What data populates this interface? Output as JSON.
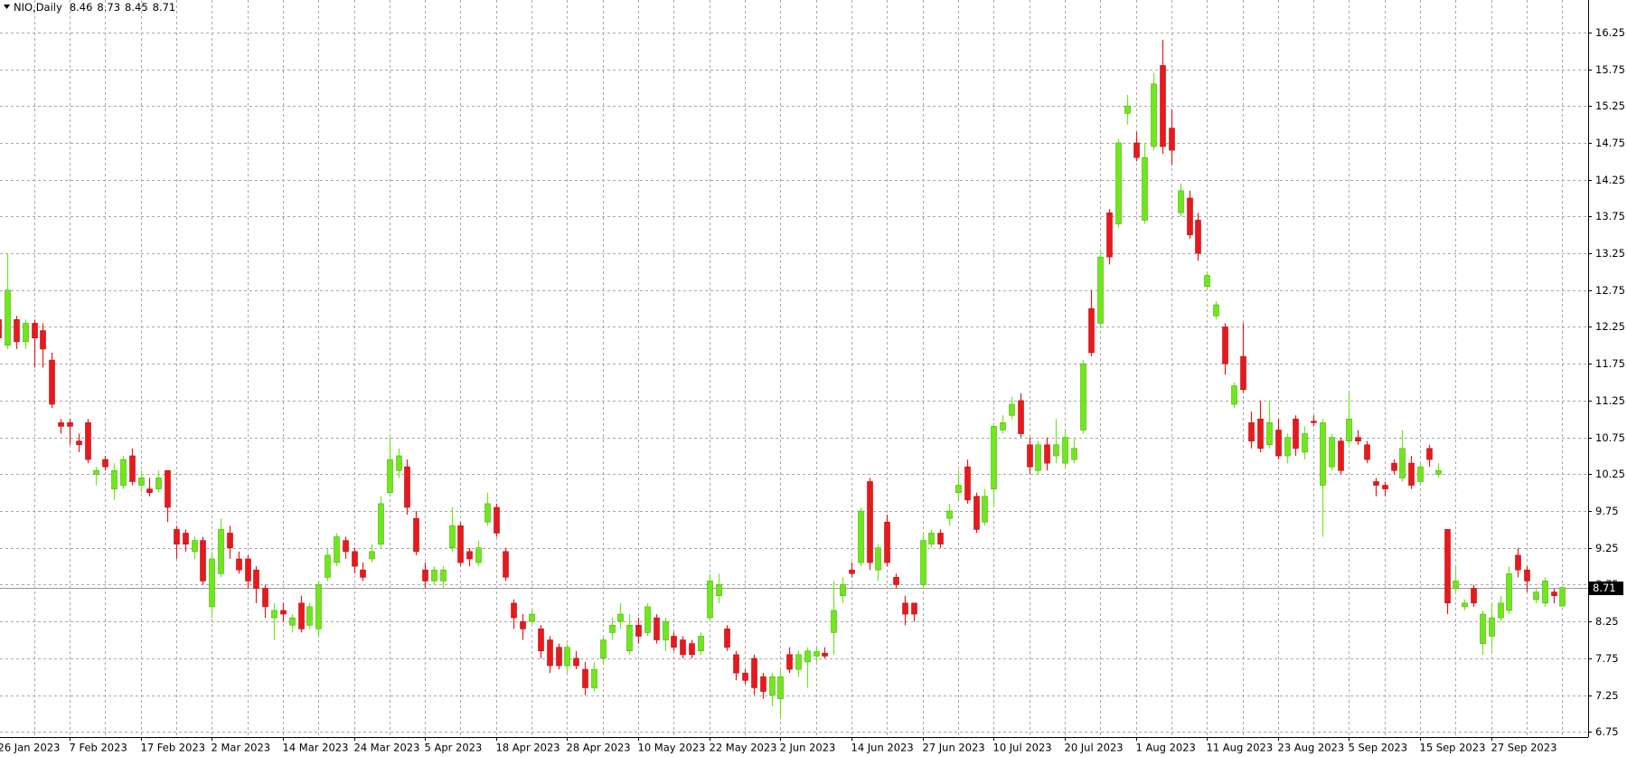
{
  "chart_data": {
    "type": "candlestick",
    "title": "NIO,Daily",
    "up_color": "#6fe81a",
    "down_color": "#e8191c",
    "grid": true,
    "ylim": [
      6.68,
      16.69
    ],
    "yticks": [
      6.75,
      7.25,
      7.75,
      8.25,
      8.75,
      9.25,
      9.75,
      10.25,
      10.75,
      11.25,
      11.75,
      12.25,
      12.75,
      13.25,
      13.75,
      14.25,
      14.75,
      15.25,
      15.75,
      16.25
    ],
    "categories": [
      "26 Jan 2023",
      null,
      null,
      null,
      null,
      null,
      null,
      null,
      "7 Feb 2023",
      null,
      null,
      null,
      null,
      null,
      null,
      null,
      "17 Feb 2023",
      null,
      null,
      null,
      null,
      null,
      null,
      null,
      "2 Mar 2023",
      null,
      null,
      null,
      null,
      null,
      null,
      null,
      "14 Mar 2023",
      null,
      null,
      null,
      null,
      null,
      null,
      null,
      "24 Mar 2023",
      null,
      null,
      null,
      null,
      null,
      null,
      null,
      "5 Apr 2023",
      null,
      null,
      null,
      null,
      null,
      null,
      null,
      "18 Apr 2023",
      null,
      null,
      null,
      null,
      null,
      null,
      null,
      "28 Apr 2023",
      null,
      null,
      null,
      null,
      null,
      null,
      null,
      "10 May 2023",
      null,
      null,
      null,
      null,
      null,
      null,
      null,
      "22 May 2023",
      null,
      null,
      null,
      null,
      null,
      null,
      null,
      "2 Jun 2023",
      null,
      null,
      null,
      null,
      null,
      null,
      null,
      "14 Jun 2023",
      null,
      null,
      null,
      null,
      null,
      null,
      null,
      "27 Jun 2023",
      null,
      null,
      null,
      null,
      null,
      null,
      null,
      "10 Jul 2023",
      null,
      null,
      null,
      null,
      null,
      null,
      null,
      "20 Jul 2023",
      null,
      null,
      null,
      null,
      null,
      null,
      null,
      "1 Aug 2023",
      null,
      null,
      null,
      null,
      null,
      null,
      null,
      "11 Aug 2023",
      null,
      null,
      null,
      null,
      null,
      null,
      null,
      "23 Aug 2023",
      null,
      null,
      null,
      null,
      null,
      null,
      null,
      "5 Sep 2023",
      null,
      null,
      null,
      null,
      null,
      null,
      null,
      "15 Sep 2023",
      null,
      null,
      null,
      null,
      null,
      null,
      null,
      "27 Sep 2023",
      null,
      null,
      null,
      null,
      null,
      null,
      null,
      null
    ],
    "candles": [
      [
        12.35,
        12.5,
        12.0,
        12.1
      ],
      [
        12.0,
        13.25,
        11.95,
        12.75
      ],
      [
        12.35,
        12.4,
        11.95,
        12.05
      ],
      [
        12.05,
        12.35,
        11.95,
        12.3
      ],
      [
        12.3,
        12.35,
        11.7,
        12.1
      ],
      [
        12.2,
        12.3,
        11.7,
        11.95
      ],
      [
        11.8,
        11.9,
        11.15,
        11.2
      ],
      [
        10.95,
        11.0,
        10.8,
        10.9
      ],
      [
        10.95,
        11.0,
        10.65,
        10.9
      ],
      [
        10.7,
        10.8,
        10.55,
        10.65
      ],
      [
        10.95,
        11.0,
        10.4,
        10.45
      ],
      [
        10.25,
        10.35,
        10.1,
        10.3
      ],
      [
        10.45,
        10.5,
        10.3,
        10.35
      ],
      [
        10.05,
        10.4,
        9.9,
        10.3
      ],
      [
        10.1,
        10.5,
        10.05,
        10.45
      ],
      [
        10.5,
        10.6,
        10.1,
        10.15
      ],
      [
        10.1,
        10.3,
        10.0,
        10.2
      ],
      [
        10.05,
        10.2,
        9.95,
        10.0
      ],
      [
        10.05,
        10.3,
        10.0,
        10.2
      ],
      [
        10.3,
        10.3,
        9.6,
        9.8
      ],
      [
        9.5,
        9.55,
        9.1,
        9.3
      ],
      [
        9.45,
        9.5,
        9.2,
        9.3
      ],
      [
        9.2,
        9.4,
        9.1,
        9.35
      ],
      [
        9.35,
        9.4,
        8.75,
        8.8
      ],
      [
        8.45,
        9.2,
        8.3,
        9.1
      ],
      [
        8.9,
        9.65,
        8.85,
        9.5
      ],
      [
        9.45,
        9.55,
        9.1,
        9.25
      ],
      [
        9.1,
        9.2,
        8.9,
        8.95
      ],
      [
        9.1,
        9.15,
        8.7,
        8.8
      ],
      [
        8.95,
        9.0,
        8.5,
        8.7
      ],
      [
        8.7,
        8.75,
        8.3,
        8.45
      ],
      [
        8.3,
        8.5,
        8.0,
        8.4
      ],
      [
        8.4,
        8.5,
        8.25,
        8.35
      ],
      [
        8.2,
        8.35,
        8.1,
        8.3
      ],
      [
        8.5,
        8.6,
        8.1,
        8.15
      ],
      [
        8.2,
        8.5,
        8.15,
        8.45
      ],
      [
        8.15,
        8.8,
        8.05,
        8.75
      ],
      [
        8.85,
        9.25,
        8.8,
        9.15
      ],
      [
        9.05,
        9.45,
        9.0,
        9.4
      ],
      [
        9.35,
        9.4,
        9.1,
        9.2
      ],
      [
        9.2,
        9.25,
        8.9,
        9.0
      ],
      [
        8.95,
        9.05,
        8.8,
        8.85
      ],
      [
        9.1,
        9.3,
        9.05,
        9.2
      ],
      [
        9.3,
        9.95,
        9.25,
        9.85
      ],
      [
        10.0,
        10.75,
        9.95,
        10.45
      ],
      [
        10.3,
        10.6,
        10.2,
        10.5
      ],
      [
        10.35,
        10.45,
        9.7,
        9.8
      ],
      [
        9.65,
        9.75,
        9.15,
        9.2
      ],
      [
        8.95,
        9.05,
        8.7,
        8.8
      ],
      [
        8.8,
        9.0,
        8.75,
        8.95
      ],
      [
        8.8,
        9.0,
        8.7,
        8.95
      ],
      [
        9.25,
        9.8,
        9.2,
        9.55
      ],
      [
        9.55,
        9.6,
        9.0,
        9.05
      ],
      [
        9.2,
        9.25,
        9.0,
        9.1
      ],
      [
        9.05,
        9.35,
        9.0,
        9.25
      ],
      [
        9.6,
        10.0,
        9.55,
        9.85
      ],
      [
        9.8,
        9.85,
        9.4,
        9.45
      ],
      [
        9.2,
        9.25,
        8.8,
        8.85
      ],
      [
        8.5,
        8.55,
        8.15,
        8.3
      ],
      [
        8.25,
        8.35,
        8.0,
        8.15
      ],
      [
        8.25,
        8.4,
        8.2,
        8.35
      ],
      [
        8.15,
        8.2,
        7.75,
        7.85
      ],
      [
        8.0,
        8.05,
        7.55,
        7.65
      ],
      [
        7.9,
        7.95,
        7.6,
        7.65
      ],
      [
        7.65,
        7.95,
        7.55,
        7.9
      ],
      [
        7.75,
        7.85,
        7.6,
        7.65
      ],
      [
        7.6,
        7.7,
        7.25,
        7.35
      ],
      [
        7.35,
        7.7,
        7.3,
        7.6
      ],
      [
        7.75,
        8.05,
        7.7,
        8.0
      ],
      [
        8.1,
        8.3,
        8.0,
        8.2
      ],
      [
        8.25,
        8.5,
        8.15,
        8.35
      ],
      [
        7.85,
        8.35,
        7.8,
        8.2
      ],
      [
        8.2,
        8.3,
        7.95,
        8.05
      ],
      [
        8.1,
        8.5,
        8.05,
        8.45
      ],
      [
        8.3,
        8.35,
        7.95,
        8.0
      ],
      [
        8.0,
        8.3,
        7.85,
        8.25
      ],
      [
        8.05,
        8.1,
        7.85,
        7.9
      ],
      [
        8.0,
        8.05,
        7.75,
        7.8
      ],
      [
        7.95,
        8.0,
        7.75,
        7.8
      ],
      [
        7.85,
        8.1,
        7.8,
        8.05
      ],
      [
        8.3,
        8.9,
        8.25,
        8.8
      ],
      [
        8.6,
        8.9,
        8.5,
        8.75
      ],
      [
        8.15,
        8.2,
        7.85,
        7.9
      ],
      [
        7.8,
        7.85,
        7.45,
        7.55
      ],
      [
        7.55,
        7.6,
        7.4,
        7.45
      ],
      [
        7.75,
        7.8,
        7.25,
        7.35
      ],
      [
        7.5,
        7.55,
        7.2,
        7.3
      ],
      [
        7.25,
        7.55,
        7.1,
        7.5
      ],
      [
        7.2,
        7.6,
        6.95,
        7.5
      ],
      [
        7.8,
        7.9,
        7.55,
        7.6
      ],
      [
        7.6,
        7.85,
        7.5,
        7.8
      ],
      [
        7.7,
        7.9,
        7.35,
        7.85
      ],
      [
        7.78,
        7.9,
        7.7,
        7.84
      ],
      [
        7.82,
        7.9,
        7.75,
        7.78
      ],
      [
        8.1,
        8.8,
        7.8,
        8.4
      ],
      [
        8.6,
        8.85,
        8.5,
        8.75
      ],
      [
        8.95,
        9.05,
        8.85,
        8.9
      ],
      [
        9.05,
        9.8,
        9.0,
        9.75
      ],
      [
        10.15,
        10.2,
        8.95,
        9.05
      ],
      [
        8.95,
        9.3,
        8.8,
        9.25
      ],
      [
        9.6,
        9.7,
        9.0,
        9.05
      ],
      [
        8.85,
        8.9,
        8.7,
        8.75
      ],
      [
        8.5,
        8.6,
        8.2,
        8.35
      ],
      [
        8.5,
        8.5,
        8.25,
        8.35
      ],
      [
        8.75,
        9.45,
        8.7,
        9.35
      ],
      [
        9.3,
        9.5,
        9.25,
        9.45
      ],
      [
        9.45,
        9.5,
        9.25,
        9.3
      ],
      [
        9.65,
        9.85,
        9.55,
        9.75
      ],
      [
        10.0,
        10.3,
        9.9,
        10.1
      ],
      [
        10.35,
        10.45,
        9.85,
        9.9
      ],
      [
        9.95,
        10.0,
        9.45,
        9.5
      ],
      [
        9.6,
        10.05,
        9.55,
        9.95
      ],
      [
        10.05,
        10.95,
        9.8,
        10.9
      ],
      [
        10.85,
        11.05,
        10.8,
        10.95
      ],
      [
        11.05,
        11.3,
        11.0,
        11.2
      ],
      [
        11.25,
        11.35,
        10.75,
        10.8
      ],
      [
        10.65,
        10.75,
        10.25,
        10.35
      ],
      [
        10.3,
        10.7,
        10.25,
        10.65
      ],
      [
        10.65,
        10.75,
        10.3,
        10.4
      ],
      [
        10.5,
        11.0,
        10.4,
        10.65
      ],
      [
        10.4,
        10.85,
        10.35,
        10.75
      ],
      [
        10.45,
        10.75,
        10.4,
        10.6
      ],
      [
        10.85,
        11.8,
        10.8,
        11.75
      ],
      [
        12.5,
        12.75,
        11.85,
        11.9
      ],
      [
        12.3,
        13.3,
        12.25,
        13.2
      ],
      [
        13.8,
        13.85,
        13.1,
        13.2
      ],
      [
        13.65,
        14.8,
        13.6,
        14.75
      ],
      [
        15.15,
        15.4,
        15.0,
        15.25
      ],
      [
        14.75,
        14.9,
        14.5,
        14.55
      ],
      [
        13.7,
        14.75,
        13.65,
        14.55
      ],
      [
        14.7,
        15.7,
        14.65,
        15.55
      ],
      [
        15.8,
        16.15,
        14.6,
        14.7
      ],
      [
        14.95,
        15.2,
        14.45,
        14.65
      ],
      [
        13.8,
        14.2,
        13.75,
        14.1
      ],
      [
        14.0,
        14.1,
        13.45,
        13.5
      ],
      [
        13.7,
        13.8,
        13.15,
        13.25
      ],
      [
        12.8,
        13.0,
        12.75,
        12.95
      ],
      [
        12.4,
        12.6,
        12.35,
        12.55
      ],
      [
        12.25,
        12.3,
        11.6,
        11.75
      ],
      [
        11.2,
        11.5,
        11.15,
        11.45
      ],
      [
        11.85,
        12.3,
        11.35,
        11.4
      ],
      [
        10.95,
        11.1,
        10.6,
        10.7
      ],
      [
        11.0,
        11.25,
        10.55,
        10.6
      ],
      [
        10.65,
        11.25,
        10.6,
        10.95
      ],
      [
        10.85,
        11.0,
        10.45,
        10.5
      ],
      [
        10.5,
        10.8,
        10.4,
        10.75
      ],
      [
        11.0,
        11.05,
        10.5,
        10.6
      ],
      [
        10.55,
        10.9,
        10.45,
        10.8
      ],
      [
        10.97,
        11.05,
        10.9,
        10.95
      ],
      [
        10.1,
        11.0,
        9.4,
        10.95
      ],
      [
        10.35,
        10.8,
        10.3,
        10.75
      ],
      [
        10.7,
        10.75,
        10.25,
        10.3
      ],
      [
        10.7,
        11.35,
        10.65,
        11.0
      ],
      [
        10.75,
        10.85,
        10.65,
        10.7
      ],
      [
        10.65,
        10.7,
        10.4,
        10.45
      ],
      [
        10.15,
        10.2,
        9.95,
        10.1
      ],
      [
        10.1,
        10.15,
        9.95,
        10.05
      ],
      [
        10.4,
        10.45,
        10.25,
        10.3
      ],
      [
        10.2,
        10.85,
        10.15,
        10.6
      ],
      [
        10.4,
        10.5,
        10.05,
        10.1
      ],
      [
        10.15,
        10.4,
        10.1,
        10.35
      ],
      [
        10.6,
        10.65,
        10.35,
        10.45
      ],
      [
        10.25,
        10.4,
        10.2,
        10.3
      ],
      [
        9.5,
        9.5,
        8.35,
        8.5
      ],
      [
        8.7,
        9.0,
        8.65,
        8.8
      ],
      [
        8.45,
        8.55,
        8.4,
        8.5
      ],
      [
        8.7,
        8.75,
        8.45,
        8.5
      ],
      [
        7.95,
        8.4,
        7.8,
        8.35
      ],
      [
        8.05,
        8.5,
        7.85,
        8.3
      ],
      [
        8.3,
        8.6,
        8.25,
        8.5
      ],
      [
        8.4,
        9.0,
        8.35,
        8.9
      ],
      [
        9.15,
        9.25,
        8.85,
        8.95
      ],
      [
        8.95,
        9.0,
        8.65,
        8.8
      ],
      [
        8.55,
        8.7,
        8.5,
        8.65
      ],
      [
        8.5,
        8.85,
        8.45,
        8.8
      ],
      [
        8.65,
        8.7,
        8.5,
        8.6
      ],
      [
        8.46,
        8.73,
        8.45,
        8.71
      ]
    ]
  }
}
